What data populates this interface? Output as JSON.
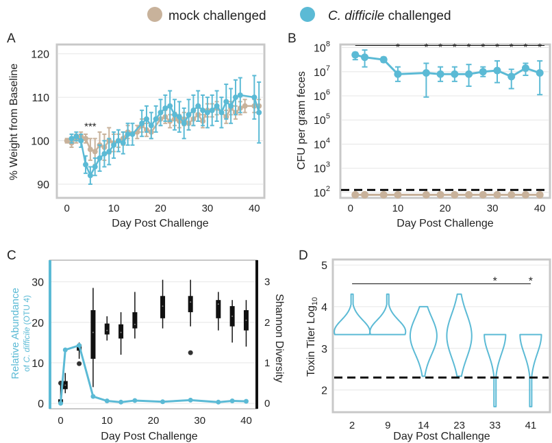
{
  "colors": {
    "mock": "#c8b29b",
    "cdiff": "#5bbad5",
    "box": "#111111",
    "frame": "#c8c8c8",
    "grid": "#e6e6e6"
  },
  "legend": [
    {
      "key": "mock",
      "label": "mock challenged",
      "italic_prefix": ""
    },
    {
      "key": "cdiff",
      "label": " challenged",
      "italic_prefix": "C. difficile"
    }
  ],
  "chart_data": [
    {
      "panel": "A",
      "type": "line",
      "xlabel": "Day Post Challenge",
      "ylabel": "% Weight from Baseline",
      "xlim": [
        -2,
        42
      ],
      "ylim": [
        87,
        122
      ],
      "xticks": [
        0,
        10,
        20,
        30,
        40
      ],
      "yticks": [
        90,
        100,
        110,
        120
      ],
      "grid": true,
      "annotations": [
        {
          "text": "***",
          "x": 5,
          "y": 102.5
        }
      ],
      "series": [
        {
          "name": "mock challenged",
          "color_key": "mock",
          "x": [
            0,
            1,
            2,
            3,
            4,
            5,
            6,
            7,
            8,
            9,
            10,
            11,
            12,
            13,
            15,
            16,
            17,
            18,
            20,
            21,
            22,
            23,
            24,
            25,
            26,
            27,
            28,
            29,
            30,
            31,
            32,
            34,
            35,
            36,
            37,
            38,
            40,
            41
          ],
          "y": [
            100,
            99.5,
            100.5,
            101,
            100.5,
            98,
            97.5,
            99,
            98.5,
            100,
            99.5,
            100,
            100.5,
            102,
            102,
            103.5,
            102.5,
            102,
            105,
            105.5,
            104.5,
            105,
            104.5,
            105,
            104,
            105,
            106,
            104.5,
            107,
            107,
            107.5,
            105.5,
            107.5,
            106.5,
            107.5,
            108,
            108,
            108
          ],
          "err": [
            0.5,
            1,
            1,
            1,
            1,
            2.5,
            3,
            3,
            3,
            3,
            2,
            1.5,
            1.5,
            1.5,
            1.5,
            1.5,
            1.5,
            1.5,
            1.5,
            1.5,
            1.5,
            1.5,
            1.5,
            1.5,
            1.5,
            1.5,
            1.5,
            1.5,
            1.5,
            1.5,
            1.5,
            1.5,
            1.5,
            1.5,
            1.5,
            1.5,
            1.5,
            1.5
          ]
        },
        {
          "name": "C. difficile challenged",
          "color_key": "cdiff",
          "x": [
            1,
            2,
            3,
            4,
            5,
            6,
            7,
            8,
            9,
            10,
            11,
            12,
            13,
            14,
            16,
            17,
            18,
            19,
            20,
            21,
            22,
            23,
            24,
            25,
            26,
            27,
            28,
            29,
            30,
            31,
            32,
            33,
            34,
            35,
            36,
            37,
            40,
            41
          ],
          "y": [
            100.5,
            101,
            100,
            94.5,
            92,
            94,
            96,
            97,
            97.5,
            99,
            100,
            99.5,
            101.5,
            101.5,
            104,
            105,
            103.5,
            105,
            106.5,
            107.5,
            108,
            106,
            105.5,
            104,
            106,
            107,
            108,
            107,
            106.5,
            107,
            108,
            106.5,
            109,
            108,
            110,
            110.5,
            110,
            106.5
          ],
          "err": [
            1,
            1,
            1.5,
            2,
            2,
            2,
            3,
            3,
            3,
            3,
            2.5,
            2.5,
            2.5,
            2.5,
            3,
            3,
            3,
            3,
            3,
            3,
            3.5,
            3.5,
            3.5,
            3.5,
            3.5,
            3.5,
            3.5,
            3.5,
            3.5,
            3.5,
            3.5,
            3.5,
            4,
            4,
            4,
            4,
            5,
            7
          ]
        }
      ]
    },
    {
      "panel": "B",
      "type": "line",
      "scale_y": "log",
      "xlabel": "Day Post Challenge",
      "ylabel": "CFU per gram feces",
      "xlim": [
        -2,
        42
      ],
      "ylim_log10": [
        1.8,
        8.1
      ],
      "xticks": [
        0,
        10,
        20,
        30,
        40
      ],
      "ytick_base": "10",
      "ytick_exps": [
        "2",
        "3",
        "4",
        "5",
        "6",
        "7",
        "8"
      ],
      "detection_limit_log10": 2.1,
      "significance": {
        "line_from": 1,
        "line_to": 41,
        "y_log10": 8.0,
        "marks_x": [
          10,
          16,
          19,
          22,
          25,
          28,
          31,
          34,
          37,
          40
        ],
        "text": "*"
      },
      "series": [
        {
          "name": "C. difficile challenged",
          "color_key": "cdiff",
          "x": [
            1,
            3,
            7,
            10,
            16,
            19,
            22,
            25,
            28,
            31,
            34,
            37,
            40
          ],
          "y_log10": [
            7.7,
            7.6,
            7.5,
            6.9,
            6.95,
            6.9,
            6.9,
            6.9,
            7.0,
            7.05,
            6.8,
            7.15,
            6.95
          ],
          "err_lo": [
            0.2,
            0.4,
            0.1,
            0.3,
            1.0,
            0.3,
            0.3,
            0.5,
            0.2,
            0.5,
            0.5,
            0.3,
            0.9
          ],
          "err_hi": [
            0.1,
            0.3,
            0.1,
            0.3,
            0.4,
            0.3,
            0.3,
            0.4,
            0.2,
            0.4,
            0.3,
            0.2,
            0.5
          ]
        },
        {
          "name": "mock challenged",
          "color_key": "mock",
          "x": [
            1,
            3,
            7,
            10,
            16,
            19,
            22,
            25,
            28,
            31,
            34,
            37,
            40
          ],
          "y_log10": [
            1.9,
            1.9,
            1.9,
            1.9,
            1.9,
            1.9,
            1.9,
            1.9,
            1.9,
            1.9,
            1.9,
            1.9,
            1.9
          ]
        }
      ]
    },
    {
      "panel": "C",
      "type": "line",
      "xlabel": "Day Post Challenge",
      "ylabel_left_line1": "Relative Abundance",
      "ylabel_left_line2_prefix": "of ",
      "ylabel_left_line2_italic": "C. difficile",
      "ylabel_left_line2_suffix": " (OTU 4)",
      "ylabel_right": "Shannon Diversity",
      "xlim": [
        -2,
        42
      ],
      "ylim_left": [
        -1,
        35
      ],
      "ylim_right": [
        -0.1,
        3.5
      ],
      "xticks": [
        0,
        10,
        20,
        30,
        40
      ],
      "yticks_left": [
        0,
        10,
        20,
        30
      ],
      "yticks_right": [
        0,
        1,
        2,
        3
      ],
      "series": [
        {
          "name": "C. difficile relative abundance",
          "color_key": "cdiff",
          "x": [
            0,
            1,
            4,
            7,
            10,
            13,
            16,
            22,
            28,
            34,
            37,
            40
          ],
          "y": [
            0,
            13.2,
            14.3,
            1.7,
            0.6,
            0.3,
            0.7,
            0.4,
            0.8,
            0.3,
            0.6,
            0.5
          ]
        }
      ],
      "boxes": [
        {
          "x": 0,
          "lo": 0.0,
          "q1": 0.02,
          "med": 0.05,
          "q3": 0.1,
          "hi": 0.5,
          "outliers": [
            0.5
          ]
        },
        {
          "x": 1,
          "lo": 0.25,
          "q1": 0.35,
          "med": 0.45,
          "q3": 0.55,
          "hi": 0.75,
          "outliers": []
        },
        {
          "x": 4,
          "lo": 1.1,
          "q1": 1.3,
          "med": 1.38,
          "q3": 1.45,
          "hi": 1.5,
          "outliers": [
            0.98
          ]
        },
        {
          "x": 7,
          "lo": 0.4,
          "q1": 1.1,
          "med": 1.75,
          "q3": 2.3,
          "hi": 2.85,
          "outliers": []
        },
        {
          "x": 10,
          "lo": 1.55,
          "q1": 1.7,
          "med": 1.8,
          "q3": 1.97,
          "hi": 2.15,
          "outliers": []
        },
        {
          "x": 13,
          "lo": 1.2,
          "q1": 1.6,
          "med": 1.75,
          "q3": 1.95,
          "hi": 2.25,
          "outliers": []
        },
        {
          "x": 16,
          "lo": 1.6,
          "q1": 1.85,
          "med": 1.95,
          "q3": 2.25,
          "hi": 2.75,
          "outliers": []
        },
        {
          "x": 22,
          "lo": 1.85,
          "q1": 2.1,
          "med": 2.4,
          "q3": 2.65,
          "hi": 3.05,
          "outliers": []
        },
        {
          "x": 28,
          "lo": 1.9,
          "q1": 2.25,
          "med": 2.5,
          "q3": 2.65,
          "hi": 3.05,
          "outliers": [
            1.25
          ]
        },
        {
          "x": 34,
          "lo": 1.8,
          "q1": 2.1,
          "med": 2.45,
          "q3": 2.55,
          "hi": 2.75,
          "outliers": []
        },
        {
          "x": 37,
          "lo": 1.5,
          "q1": 1.9,
          "med": 2.15,
          "q3": 2.4,
          "hi": 2.55,
          "outliers": []
        },
        {
          "x": 40,
          "lo": 1.4,
          "q1": 1.8,
          "med": 2.05,
          "q3": 2.3,
          "hi": 2.55,
          "outliers": []
        }
      ]
    },
    {
      "panel": "D",
      "type": "violin",
      "xlabel": "Day Post Challenge",
      "ylabel_main": "Toxin Titer Log",
      "ylabel_sub": "10",
      "categories": [
        "2",
        "9",
        "14",
        "23",
        "33",
        "41"
      ],
      "ylim": [
        1.5,
        5.1
      ],
      "yticks": [
        2,
        3,
        4,
        5
      ],
      "detection_limit": 2.3,
      "significance": {
        "line_from": "2",
        "line_to": "41",
        "y": 4.55,
        "marks_at": [
          "33",
          "41"
        ],
        "text": "*"
      },
      "violins": [
        {
          "lo": 3.33,
          "hi": 4.3,
          "ymode": 3.4,
          "wmax": 1.0
        },
        {
          "lo": 3.33,
          "hi": 4.3,
          "ymode": 3.4,
          "wmax": 1.0
        },
        {
          "lo": 2.33,
          "hi": 4.0,
          "ymode": 3.3,
          "wmax": 0.75
        },
        {
          "lo": 2.33,
          "hi": 4.3,
          "ymode": 3.3,
          "wmax": 0.7
        },
        {
          "lo": 1.6,
          "hi": 3.33,
          "ymode": 3.33,
          "wmax": 0.6
        },
        {
          "lo": 1.6,
          "hi": 3.33,
          "ymode": 3.33,
          "wmax": 0.6
        }
      ]
    }
  ]
}
